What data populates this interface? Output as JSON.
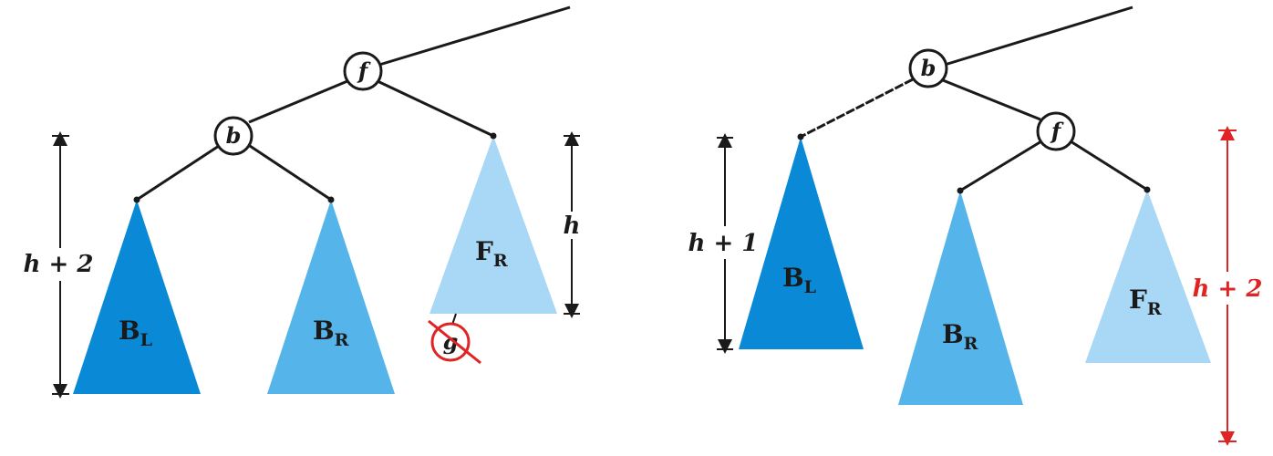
{
  "colors": {
    "dark_blue": "#0a8ad6",
    "mid_blue": "#55b5ea",
    "light_blue": "#a8d8f5",
    "line": "#1a1a1a",
    "red": "#e02424"
  },
  "left_tree": {
    "root_label": "f",
    "left_child_label": "b",
    "removed_node_label": "g",
    "subtrees": {
      "bl": {
        "main": "B",
        "sub": "L"
      },
      "br": {
        "main": "B",
        "sub": "R"
      },
      "fr": {
        "main": "F",
        "sub": "R"
      }
    },
    "height_left": "h + 2",
    "height_right": "h"
  },
  "right_tree": {
    "root_label": "b",
    "right_child_label": "f",
    "subtrees": {
      "bl": {
        "main": "B",
        "sub": "L"
      },
      "br": {
        "main": "B",
        "sub": "R"
      },
      "fr": {
        "main": "F",
        "sub": "R"
      }
    },
    "height_left": "h + 1",
    "height_right": "h + 2"
  }
}
